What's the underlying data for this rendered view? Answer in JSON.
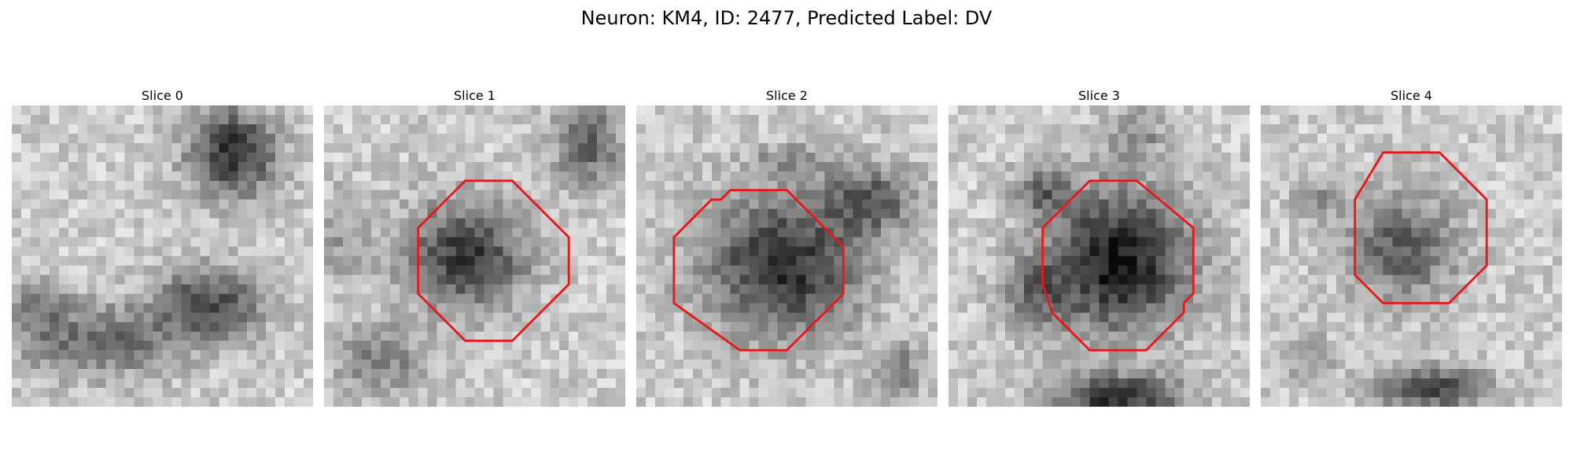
{
  "figure": {
    "title": "Neuron: KM4, ID: 2477, Predicted Label: DV"
  },
  "panels": [
    {
      "title": "Slice 0",
      "has_roi": false
    },
    {
      "title": "Slice 1",
      "has_roi": true
    },
    {
      "title": "Slice 2",
      "has_roi": true
    },
    {
      "title": "Slice 3",
      "has_roi": true
    },
    {
      "title": "Slice 4",
      "has_roi": true
    }
  ],
  "colors": {
    "roi_outline": "#e81818",
    "background": "#ffffff"
  },
  "colormap": "gray"
}
